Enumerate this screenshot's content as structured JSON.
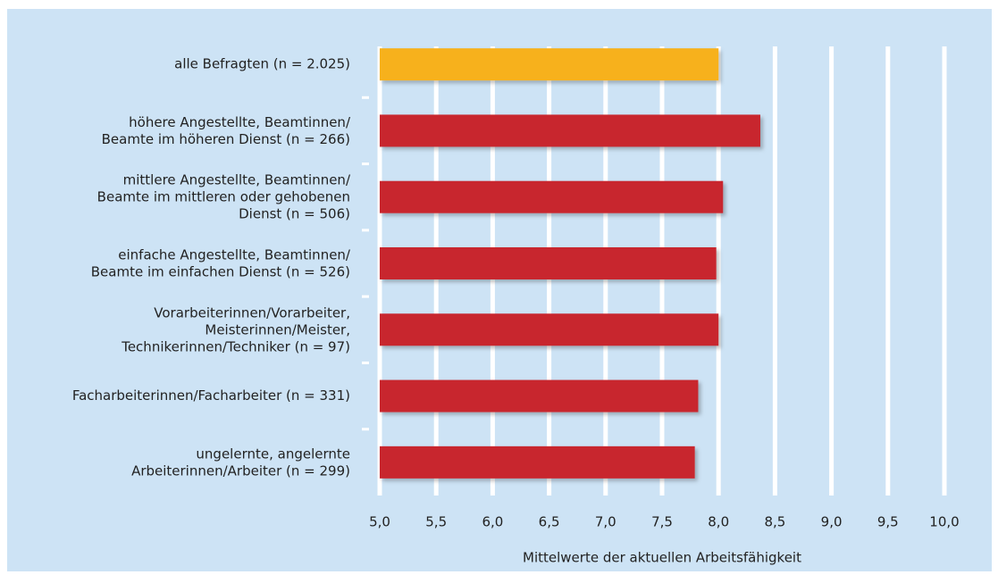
{
  "chart_data": {
    "type": "barh",
    "xlabel": "Mittelwerte der aktuellen Arbeitsfähigkeit",
    "categories": [
      "alle Befragten (n = 2.025)",
      "höhere Angestellte, Beamtinnen/\nBeamte im höheren Dienst (n = 266)",
      "mittlere Angestellte, Beamtinnen/\nBeamte im mittleren oder gehobenen\nDienst (n = 506)",
      "einfache Angestellte, Beamtinnen/\nBeamte im einfachen Dienst (n = 526)",
      "Vorarbeiterinnen/Vorarbeiter,\nMeisterinnen/Meister,\nTechnikerinnen/Techniker (n = 97)",
      "Facharbeiterinnen/Facharbeiter (n = 331)",
      "ungelernte, angelernte\nArbeiterinnen/Arbeiter (n = 299)"
    ],
    "values": [
      8.0,
      8.37,
      8.04,
      7.98,
      8.0,
      7.82,
      7.79
    ],
    "colors": [
      "#f7b11d",
      "#c8262e",
      "#c8262e",
      "#c8262e",
      "#c8262e",
      "#c8262e",
      "#c8262e"
    ],
    "xlim": [
      5,
      10
    ],
    "xticks": [
      {
        "value": 5,
        "label": "5,0"
      },
      {
        "value": 5.5,
        "label": "5,5"
      },
      {
        "value": 6,
        "label": "6,0"
      },
      {
        "value": 6.5,
        "label": "6,5"
      },
      {
        "value": 7,
        "label": "7,0"
      },
      {
        "value": 7.5,
        "label": "7,5"
      },
      {
        "value": 8,
        "label": "8,0"
      },
      {
        "value": 8.5,
        "label": "8,5"
      },
      {
        "value": 9,
        "label": "9,0"
      },
      {
        "value": 9.5,
        "label": "9,5"
      },
      {
        "value": 10,
        "label": "10,0"
      }
    ],
    "grid": true
  }
}
